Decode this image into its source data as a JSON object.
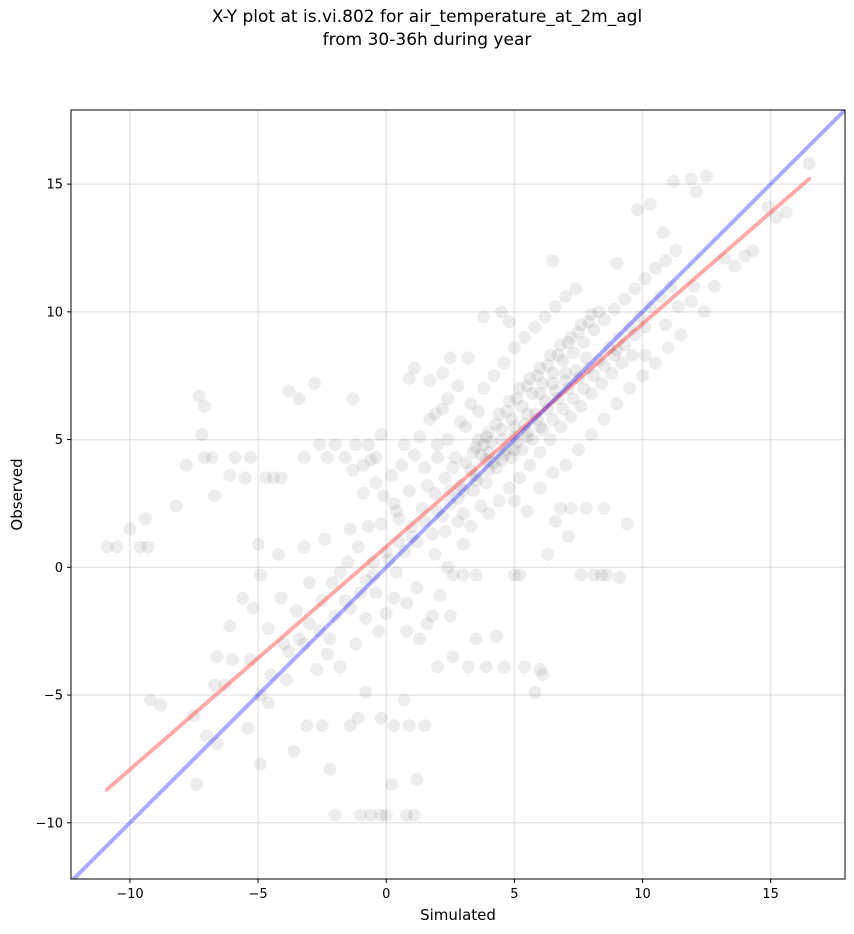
{
  "chart_data": {
    "type": "scatter",
    "title_line1": "X-Y plot at is.vi.802 for air_temperature_at_2m_agl",
    "title_line2": "from 30-36h during year",
    "xlabel": "Simulated",
    "ylabel": "Observed",
    "xlim": [
      -12.3,
      17.9
    ],
    "ylim": [
      -12.2,
      17.9
    ],
    "xticks": [
      -10,
      -5,
      0,
      5,
      10,
      15
    ],
    "yticks": [
      -10,
      -5,
      0,
      5,
      10,
      15
    ],
    "xtick_labels": [
      "−10",
      "−5",
      "0",
      "5",
      "10",
      "15"
    ],
    "ytick_labels": [
      "−10",
      "−5",
      "0",
      "5",
      "10",
      "15"
    ],
    "grid": true,
    "point_color": "#000000",
    "point_alpha": 0.07,
    "points": [
      [
        -10.9,
        0.8
      ],
      [
        -10.5,
        0.8
      ],
      [
        -10.0,
        1.5
      ],
      [
        -9.6,
        0.8
      ],
      [
        -9.4,
        1.9
      ],
      [
        -9.3,
        0.8
      ],
      [
        -8.2,
        2.4
      ],
      [
        -7.8,
        4.0
      ],
      [
        -7.3,
        6.7
      ],
      [
        -7.2,
        5.2
      ],
      [
        -7.1,
        4.3
      ],
      [
        -7.1,
        6.3
      ],
      [
        -6.8,
        4.3
      ],
      [
        -6.7,
        2.8
      ],
      [
        -6.1,
        3.6
      ],
      [
        -5.9,
        4.3
      ],
      [
        -5.5,
        3.5
      ],
      [
        -5.3,
        4.3
      ],
      [
        -4.7,
        3.5
      ],
      [
        -4.4,
        3.5
      ],
      [
        -4.1,
        3.5
      ],
      [
        -3.8,
        6.9
      ],
      [
        -3.4,
        6.6
      ],
      [
        -3.2,
        4.3
      ],
      [
        -2.8,
        7.2
      ],
      [
        -2.6,
        4.8
      ],
      [
        -2.3,
        4.3
      ],
      [
        -2.0,
        4.8
      ],
      [
        -1.6,
        4.3
      ],
      [
        -1.3,
        6.6
      ],
      [
        -1.2,
        4.8
      ],
      [
        -0.9,
        4.0
      ],
      [
        -0.7,
        4.8
      ],
      [
        -0.4,
        4.3
      ],
      [
        -0.2,
        5.2
      ],
      [
        -9.2,
        -5.2
      ],
      [
        -8.8,
        -5.4
      ],
      [
        -7.5,
        -5.8
      ],
      [
        -7.4,
        -8.5
      ],
      [
        -7.0,
        -6.6
      ],
      [
        -6.6,
        -6.9
      ],
      [
        -6.3,
        -4.6
      ],
      [
        -5.4,
        -6.3
      ],
      [
        -4.9,
        -7.7
      ],
      [
        -4.6,
        -5.3
      ],
      [
        -3.6,
        -7.2
      ],
      [
        -3.1,
        -6.2
      ],
      [
        -2.5,
        -6.2
      ],
      [
        -2.2,
        -7.9
      ],
      [
        -1.4,
        -6.2
      ],
      [
        -1.1,
        -5.9
      ],
      [
        -0.8,
        -4.9
      ],
      [
        -0.2,
        -5.9
      ],
      [
        0.3,
        -6.2
      ],
      [
        0.9,
        -6.2
      ],
      [
        1.5,
        -6.2
      ],
      [
        -2.0,
        -9.7
      ],
      [
        -1.0,
        -9.7
      ],
      [
        -0.6,
        -9.7
      ],
      [
        -0.2,
        -9.7
      ],
      [
        0.0,
        -9.7
      ],
      [
        0.2,
        -8.5
      ],
      [
        0.8,
        -9.7
      ],
      [
        1.1,
        -9.7
      ],
      [
        1.2,
        -8.3
      ],
      [
        0.7,
        -5.2
      ],
      [
        2.0,
        -3.9
      ],
      [
        2.6,
        -3.5
      ],
      [
        3.2,
        -3.9
      ],
      [
        3.9,
        -3.9
      ],
      [
        4.6,
        -3.9
      ],
      [
        5.4,
        -3.9
      ],
      [
        5.8,
        -4.9
      ],
      [
        6.0,
        -4.0
      ],
      [
        6.1,
        -4.2
      ],
      [
        3.5,
        -2.8
      ],
      [
        4.3,
        -2.7
      ],
      [
        6.3,
        0.5
      ],
      [
        6.6,
        1.8
      ],
      [
        7.1,
        1.2
      ],
      [
        7.6,
        -0.3
      ],
      [
        8.1,
        -0.3
      ],
      [
        8.4,
        -0.3
      ],
      [
        8.6,
        -0.3
      ],
      [
        9.1,
        -0.4
      ],
      [
        9.4,
        1.7
      ],
      [
        5.0,
        -0.3
      ],
      [
        5.2,
        -0.3
      ],
      [
        2.6,
        -0.3
      ],
      [
        3.0,
        -0.3
      ],
      [
        3.5,
        -0.3
      ],
      [
        8.5,
        2.3
      ],
      [
        7.8,
        2.3
      ],
      [
        7.2,
        2.3
      ],
      [
        6.8,
        2.3
      ],
      [
        9.0,
        8.5
      ],
      [
        9.6,
        8.3
      ],
      [
        10.1,
        8.3
      ],
      [
        10.9,
        9.5
      ],
      [
        11.4,
        10.2
      ],
      [
        11.9,
        10.4
      ],
      [
        12.4,
        10.0
      ],
      [
        12.0,
        11.0
      ],
      [
        12.8,
        11.0
      ],
      [
        13.2,
        12.1
      ],
      [
        13.6,
        11.8
      ],
      [
        14.0,
        12.2
      ],
      [
        14.3,
        12.4
      ],
      [
        14.9,
        14.1
      ],
      [
        15.2,
        13.7
      ],
      [
        15.6,
        13.9
      ],
      [
        16.5,
        15.8
      ],
      [
        11.2,
        15.1
      ],
      [
        11.9,
        15.2
      ],
      [
        12.1,
        14.7
      ],
      [
        12.5,
        15.3
      ],
      [
        10.3,
        14.2
      ],
      [
        9.8,
        14.0
      ],
      [
        10.8,
        13.1
      ],
      [
        6.5,
        12.0
      ],
      [
        4.8,
        9.6
      ],
      [
        4.5,
        10.0
      ],
      [
        3.8,
        9.8
      ],
      [
        3.2,
        8.2
      ],
      [
        2.5,
        8.2
      ],
      [
        2.2,
        7.6
      ],
      [
        1.7,
        7.3
      ],
      [
        0.9,
        7.4
      ],
      [
        1.1,
        7.8
      ],
      [
        -0.6,
        4.2
      ],
      [
        -1.4,
        1.5
      ],
      [
        -2.4,
        1.1
      ],
      [
        -3.2,
        0.8
      ],
      [
        -4.2,
        0.5
      ],
      [
        -5.0,
        0.9
      ],
      [
        -4.9,
        -0.3
      ],
      [
        -5.6,
        -1.2
      ],
      [
        -6.1,
        -2.3
      ],
      [
        -5.2,
        -1.6
      ],
      [
        -4.6,
        -2.4
      ],
      [
        -4.1,
        -1.2
      ],
      [
        -3.5,
        -1.7
      ],
      [
        -3.0,
        -0.6
      ],
      [
        -2.5,
        -1.3
      ],
      [
        -2.2,
        -2.8
      ],
      [
        -1.8,
        -0.2
      ],
      [
        -1.4,
        -1.6
      ],
      [
        -0.8,
        -0.5
      ],
      [
        -0.4,
        -1.0
      ],
      [
        0.0,
        -1.8
      ],
      [
        0.4,
        -0.2
      ],
      [
        0.8,
        -1.4
      ],
      [
        1.2,
        -0.8
      ],
      [
        1.6,
        -2.2
      ],
      [
        2.1,
        -1.1
      ],
      [
        2.5,
        -1.9
      ],
      [
        -3.8,
        -3.3
      ],
      [
        -3.2,
        -3.0
      ],
      [
        -2.7,
        -4.0
      ],
      [
        -2.3,
        -3.4
      ],
      [
        -1.8,
        -3.9
      ],
      [
        -4.5,
        -4.2
      ],
      [
        -5.3,
        -3.6
      ],
      [
        -6.0,
        -3.6
      ],
      [
        -6.6,
        -3.5
      ],
      [
        -6.7,
        -4.6
      ],
      [
        -4.9,
        -5.0
      ],
      [
        -3.9,
        -4.4
      ],
      [
        -1.3,
        3.8
      ],
      [
        -0.9,
        2.9
      ],
      [
        -0.4,
        3.3
      ],
      [
        0.2,
        3.6
      ],
      [
        0.6,
        4.0
      ],
      [
        0.3,
        2.5
      ],
      [
        -0.2,
        1.7
      ],
      [
        1.3,
        5.1
      ],
      [
        1.7,
        5.8
      ],
      [
        2.2,
        6.2
      ],
      [
        1.6,
        3.2
      ],
      [
        2.7,
        4.3
      ],
      [
        3.1,
        5.5
      ],
      [
        3.6,
        6.1
      ],
      [
        0.5,
        1.9
      ],
      [
        1.0,
        1.6
      ],
      [
        1.4,
        2.3
      ],
      [
        1.9,
        2.9
      ],
      [
        2.3,
        3.5
      ],
      [
        2.8,
        2.7
      ],
      [
        3.3,
        3.8
      ],
      [
        3.7,
        4.4
      ],
      [
        4.1,
        4.9
      ],
      [
        4.5,
        5.4
      ],
      [
        4.9,
        5.8
      ],
      [
        5.3,
        6.3
      ],
      [
        5.7,
        6.8
      ],
      [
        6.1,
        7.2
      ],
      [
        6.5,
        7.6
      ],
      [
        6.9,
        8.1
      ],
      [
        7.3,
        8.4
      ],
      [
        7.7,
        8.8
      ],
      [
        8.1,
        9.3
      ],
      [
        8.5,
        9.7
      ],
      [
        8.9,
        10.1
      ],
      [
        9.3,
        10.5
      ],
      [
        9.7,
        10.9
      ],
      [
        10.1,
        11.3
      ],
      [
        10.5,
        11.7
      ],
      [
        10.9,
        12.0
      ],
      [
        11.3,
        12.4
      ],
      [
        9.0,
        11.9
      ],
      [
        3.0,
        2.1
      ],
      [
        3.4,
        3.0
      ],
      [
        3.9,
        3.3
      ],
      [
        4.3,
        3.9
      ],
      [
        4.7,
        4.6
      ],
      [
        5.1,
        4.9
      ],
      [
        5.5,
        5.3
      ],
      [
        5.9,
        5.8
      ],
      [
        6.3,
        6.2
      ],
      [
        6.7,
        6.6
      ],
      [
        7.1,
        7.0
      ],
      [
        7.5,
        7.4
      ],
      [
        7.9,
        7.8
      ],
      [
        8.3,
        8.1
      ],
      [
        8.7,
        8.6
      ],
      [
        9.1,
        9.0
      ],
      [
        9.5,
        9.4
      ],
      [
        9.9,
        9.8
      ],
      [
        10.3,
        10.2
      ],
      [
        10.7,
        10.6
      ],
      [
        11.1,
        11.0
      ],
      [
        2.0,
        4.3
      ],
      [
        2.4,
        5.0
      ],
      [
        2.9,
        5.7
      ],
      [
        3.3,
        6.4
      ],
      [
        3.8,
        7.0
      ],
      [
        4.2,
        7.5
      ],
      [
        4.6,
        8.0
      ],
      [
        5.0,
        8.6
      ],
      [
        5.4,
        9.0
      ],
      [
        5.8,
        9.4
      ],
      [
        6.2,
        9.8
      ],
      [
        6.6,
        10.2
      ],
      [
        7.0,
        10.6
      ],
      [
        7.4,
        10.9
      ],
      [
        4.0,
        2.1
      ],
      [
        4.4,
        2.6
      ],
      [
        4.8,
        3.1
      ],
      [
        5.2,
        3.5
      ],
      [
        5.6,
        4.0
      ],
      [
        6.0,
        4.5
      ],
      [
        6.4,
        5.0
      ],
      [
        6.8,
        5.5
      ],
      [
        7.2,
        5.9
      ],
      [
        7.6,
        6.3
      ],
      [
        8.0,
        6.8
      ],
      [
        8.4,
        7.2
      ],
      [
        8.8,
        7.6
      ],
      [
        9.2,
        8.0
      ],
      [
        3.6,
        5.0
      ],
      [
        4.0,
        5.3
      ],
      [
        4.4,
        6.0
      ],
      [
        4.8,
        6.5
      ],
      [
        5.2,
        7.0
      ],
      [
        5.6,
        7.4
      ],
      [
        6.0,
        7.8
      ],
      [
        6.4,
        8.3
      ],
      [
        6.8,
        8.7
      ],
      [
        7.2,
        9.0
      ],
      [
        7.6,
        9.5
      ],
      [
        8.0,
        9.9
      ],
      [
        3.4,
        4.5
      ],
      [
        3.8,
        4.8
      ],
      [
        2.6,
        3.9
      ],
      [
        2.2,
        2.0
      ],
      [
        1.8,
        1.3
      ],
      [
        1.2,
        1.0
      ],
      [
        0.7,
        0.6
      ],
      [
        0.1,
        0.3
      ],
      [
        -0.5,
        -0.3
      ],
      [
        -1.0,
        -1.0
      ],
      [
        -1.6,
        -1.3
      ],
      [
        -2.0,
        -1.9
      ],
      [
        -2.6,
        -2.5
      ],
      [
        -3.0,
        -2.2
      ],
      [
        -3.4,
        -2.8
      ],
      [
        -4.0,
        -3.0
      ],
      [
        4.2,
        4.1
      ],
      [
        4.6,
        4.4
      ],
      [
        5.0,
        5.1
      ],
      [
        5.4,
        5.6
      ],
      [
        5.8,
        6.0
      ],
      [
        6.2,
        6.5
      ],
      [
        6.6,
        6.9
      ],
      [
        7.0,
        7.3
      ],
      [
        7.4,
        7.7
      ],
      [
        7.8,
        8.2
      ],
      [
        3.5,
        3.6
      ],
      [
        3.9,
        4.2
      ],
      [
        2.9,
        3.2
      ],
      [
        2.5,
        2.5
      ],
      [
        4.9,
        4.3
      ],
      [
        5.3,
        4.6
      ],
      [
        5.7,
        5.0
      ],
      [
        6.1,
        5.4
      ],
      [
        6.5,
        5.8
      ],
      [
        6.9,
        6.2
      ],
      [
        7.3,
        6.6
      ],
      [
        7.7,
        7.0
      ],
      [
        8.1,
        7.5
      ],
      [
        8.5,
        7.9
      ],
      [
        8.9,
        8.3
      ],
      [
        9.3,
        8.7
      ],
      [
        9.7,
        9.1
      ],
      [
        10.1,
        9.4
      ],
      [
        3.1,
        4.1
      ],
      [
        3.5,
        4.7
      ],
      [
        3.9,
        5.1
      ],
      [
        4.3,
        5.6
      ],
      [
        4.7,
        6.1
      ],
      [
        5.1,
        6.6
      ],
      [
        5.5,
        7.1
      ],
      [
        5.9,
        7.5
      ],
      [
        6.3,
        7.9
      ],
      [
        6.7,
        8.3
      ],
      [
        7.1,
        8.8
      ],
      [
        7.5,
        9.2
      ],
      [
        7.9,
        9.6
      ],
      [
        8.3,
        10.0
      ],
      [
        1.5,
        3.9
      ],
      [
        1.1,
        4.4
      ],
      [
        0.7,
        4.8
      ],
      [
        2.0,
        4.8
      ],
      [
        2.4,
        6.6
      ],
      [
        2.8,
        7.1
      ],
      [
        1.9,
        6.0
      ],
      [
        0.9,
        3.0
      ],
      [
        0.4,
        2.2
      ],
      [
        -0.1,
        2.8
      ],
      [
        -0.7,
        1.6
      ],
      [
        -1.1,
        0.8
      ],
      [
        -1.5,
        0.2
      ],
      [
        -2.1,
        -0.6
      ],
      [
        5.0,
        2.6
      ],
      [
        5.5,
        2.2
      ],
      [
        6.0,
        3.1
      ],
      [
        6.5,
        3.7
      ],
      [
        7.0,
        4.0
      ],
      [
        7.5,
        4.6
      ],
      [
        8.0,
        5.2
      ],
      [
        8.5,
        5.8
      ],
      [
        9.0,
        6.4
      ],
      [
        9.5,
        7.0
      ],
      [
        10.0,
        7.5
      ],
      [
        10.5,
        8.0
      ],
      [
        11.0,
        8.6
      ],
      [
        11.5,
        9.1
      ],
      [
        2.3,
        1.4
      ],
      [
        2.8,
        1.8
      ],
      [
        3.3,
        1.6
      ],
      [
        3.7,
        2.4
      ],
      [
        1.9,
        0.5
      ],
      [
        2.4,
        0.0
      ],
      [
        3.0,
        0.9
      ],
      [
        0.3,
        -1.2
      ],
      [
        0.8,
        -2.5
      ],
      [
        1.3,
        -2.8
      ],
      [
        1.8,
        -1.9
      ],
      [
        -0.3,
        -2.5
      ],
      [
        -0.8,
        -2.0
      ],
      [
        -1.2,
        -3.0
      ],
      [
        4.5,
        5.0
      ],
      [
        4.0,
        4.5
      ],
      [
        5.0,
        5.5
      ],
      [
        5.5,
        6.0
      ],
      [
        6.0,
        6.8
      ],
      [
        6.5,
        7.2
      ],
      [
        7.0,
        7.6
      ],
      [
        3.0,
        3.0
      ],
      [
        3.5,
        3.4
      ],
      [
        4.0,
        3.8
      ],
      [
        4.5,
        4.2
      ],
      [
        5.0,
        4.6
      ],
      [
        5.5,
        5.1
      ],
      [
        6.0,
        5.5
      ],
      [
        2.0,
        2.2
      ],
      [
        2.5,
        3.0
      ],
      [
        1.5,
        1.8
      ],
      [
        1.0,
        1.2
      ],
      [
        0.5,
        1.0
      ],
      [
        0.0,
        0.6
      ],
      [
        -0.5,
        0.2
      ]
    ],
    "series": [
      {
        "color": "#ff0000",
        "alpha": 0.33,
        "x": [
          -10.9,
          16.5
        ],
        "y": [
          -8.7,
          15.2
        ]
      },
      {
        "color": "#0000ff",
        "alpha": 0.33,
        "x": [
          -12.3,
          17.9
        ],
        "y": [
          -12.3,
          17.9
        ]
      }
    ]
  }
}
